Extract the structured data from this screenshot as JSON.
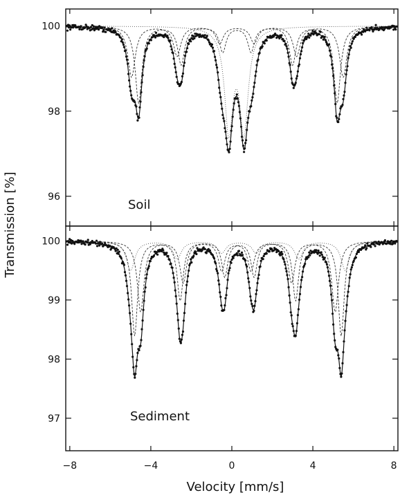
{
  "chart_data": {
    "type": "scatter",
    "xlabel": "Velocity [mm/s]",
    "ylabel": "Transmission [%]",
    "xlim": [
      -8.2,
      8.2
    ],
    "x_ticks": [
      -8,
      -4,
      0,
      4,
      8
    ],
    "x_tick_labels": [
      "−8",
      "−4",
      "0",
      "4",
      "8"
    ],
    "panels": [
      {
        "id": "soil",
        "label": "Soil",
        "ylim": [
          95.3,
          100.4
        ],
        "y_ticks": [
          100,
          98,
          96
        ],
        "y_tick_labels": [
          "100",
          "98",
          "96"
        ],
        "series": [
          {
            "kind": "sextet",
            "style": "dashed",
            "lines": [
              {
                "x": -4.6,
                "depth": 1.8,
                "hwhm": 0.2
              },
              {
                "x": -2.5,
                "depth": 0.9,
                "hwhm": 0.2
              },
              {
                "x": -0.45,
                "depth": 0.6,
                "hwhm": 0.2
              },
              {
                "x": 0.95,
                "depth": 0.6,
                "hwhm": 0.2
              },
              {
                "x": 3.0,
                "depth": 0.9,
                "hwhm": 0.2
              },
              {
                "x": 5.2,
                "depth": 1.8,
                "hwhm": 0.2
              }
            ]
          },
          {
            "kind": "sextet",
            "style": "dashed",
            "lines": [
              {
                "x": -4.95,
                "depth": 1.2,
                "hwhm": 0.22
              },
              {
                "x": -2.7,
                "depth": 0.7,
                "hwhm": 0.22
              },
              {
                "x": -0.6,
                "depth": 0.4,
                "hwhm": 0.22
              },
              {
                "x": 1.1,
                "depth": 0.4,
                "hwhm": 0.22
              },
              {
                "x": 3.2,
                "depth": 0.7,
                "hwhm": 0.22
              },
              {
                "x": 5.5,
                "depth": 1.2,
                "hwhm": 0.22
              }
            ]
          },
          {
            "kind": "doublet",
            "style": "dotted",
            "lines": [
              {
                "x": -0.15,
                "depth": 2.4,
                "hwhm": 0.25
              },
              {
                "x": 0.6,
                "depth": 2.4,
                "hwhm": 0.25
              }
            ]
          }
        ]
      },
      {
        "id": "sediment",
        "label": "Sediment",
        "ylim": [
          96.45,
          100.25
        ],
        "y_ticks": [
          100,
          99,
          98,
          97
        ],
        "y_tick_labels": [
          "100",
          "99",
          "98",
          "97"
        ],
        "series": [
          {
            "kind": "sextet",
            "style": "dashed",
            "lines": [
              {
                "x": -4.8,
                "depth": 1.6,
                "hwhm": 0.18
              },
              {
                "x": -2.55,
                "depth": 1.0,
                "hwhm": 0.18
              },
              {
                "x": -0.35,
                "depth": 0.6,
                "hwhm": 0.18
              },
              {
                "x": 1.1,
                "depth": 0.6,
                "hwhm": 0.18
              },
              {
                "x": 3.15,
                "depth": 1.0,
                "hwhm": 0.18
              },
              {
                "x": 5.4,
                "depth": 1.6,
                "hwhm": 0.18
              }
            ]
          },
          {
            "kind": "sextet",
            "style": "dashed",
            "lines": [
              {
                "x": -4.5,
                "depth": 1.2,
                "hwhm": 0.2
              },
              {
                "x": -2.4,
                "depth": 0.7,
                "hwhm": 0.2
              },
              {
                "x": -0.5,
                "depth": 0.5,
                "hwhm": 0.2
              },
              {
                "x": 0.95,
                "depth": 0.5,
                "hwhm": 0.2
              },
              {
                "x": 2.95,
                "depth": 0.7,
                "hwhm": 0.2
              },
              {
                "x": 5.1,
                "depth": 1.2,
                "hwhm": 0.2
              }
            ]
          },
          {
            "kind": "sextet",
            "style": "dotted",
            "lines": [
              {
                "x": -5.0,
                "depth": 0.5,
                "hwhm": 0.25
              },
              {
                "x": -2.7,
                "depth": 0.3,
                "hwhm": 0.25
              },
              {
                "x": -0.5,
                "depth": 0.2,
                "hwhm": 0.25
              },
              {
                "x": 1.2,
                "depth": 0.2,
                "hwhm": 0.25
              },
              {
                "x": 3.3,
                "depth": 0.3,
                "hwhm": 0.25
              },
              {
                "x": 5.6,
                "depth": 0.5,
                "hwhm": 0.25
              }
            ]
          }
        ]
      }
    ]
  }
}
